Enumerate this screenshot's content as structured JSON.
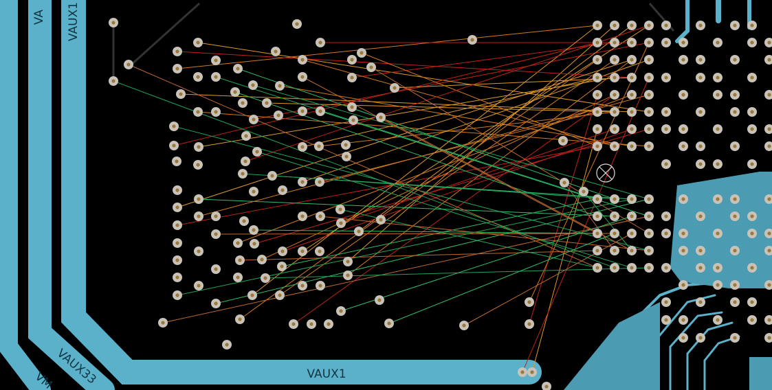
{
  "labels": {
    "top_partial": "VA",
    "top_vertical": "VAUX1",
    "bottom_horizontal": "VAUX1",
    "diagonal": "VAUX33",
    "diagonal_partial": "VM"
  }
}
